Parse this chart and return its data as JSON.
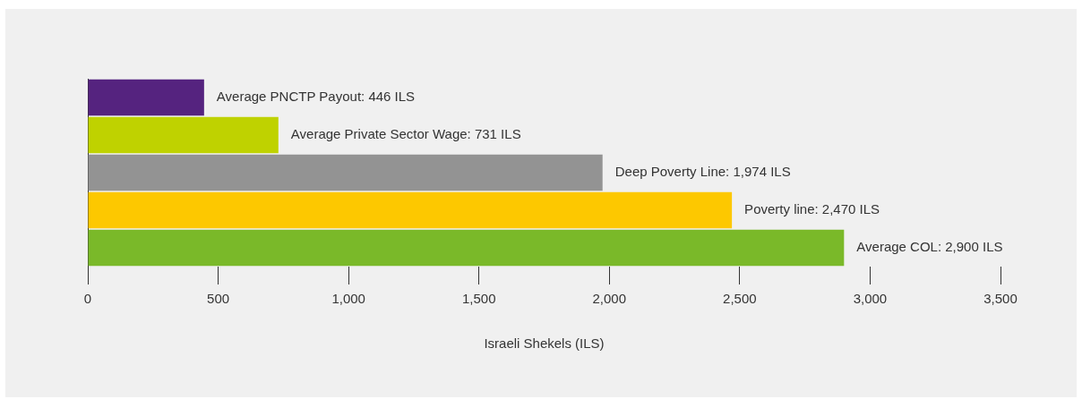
{
  "chart_data": {
    "type": "bar",
    "orientation": "horizontal",
    "xlabel": "Israeli Shekels (ILS)",
    "categories": [
      null,
      null,
      null,
      null,
      null
    ],
    "values": [
      446,
      731,
      1974,
      2470,
      2900
    ],
    "colors": [
      "#55237f",
      "#bfd200",
      "#939393",
      "#fdc800",
      "#7ab929"
    ],
    "value_labels": [
      "Average PNCTP Payout: 446 ILS",
      "Average Private Sector Wage: 731 ILS",
      "Deep Poverty Line: 1,974 ILS",
      "Poverty line: 2,470 ILS",
      "Average COL: 2,900 ILS"
    ],
    "xlim": [
      0,
      3500
    ],
    "xticks": [
      {
        "value": 0,
        "label": "0"
      },
      {
        "value": 500,
        "label": "500"
      },
      {
        "value": 1000,
        "label": "1,000"
      },
      {
        "value": 1500,
        "label": "1,500"
      },
      {
        "value": 2000,
        "label": "2,000"
      },
      {
        "value": 2500,
        "label": "2,500"
      },
      {
        "value": 3000,
        "label": "3,000"
      },
      {
        "value": 3500,
        "label": "3,500"
      }
    ]
  }
}
